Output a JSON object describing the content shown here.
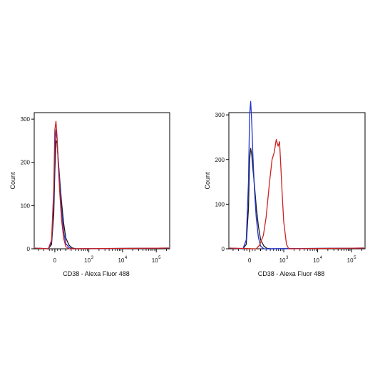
{
  "chart_data": [
    {
      "type": "line",
      "panel": "left",
      "xlabel": "CD38 - Alexa Fluor 488",
      "ylabel": "Count",
      "x_scale": "biexponential",
      "ylim": [
        0,
        315
      ],
      "y_ticks": [
        {
          "value": 0,
          "label": "0"
        },
        {
          "value": 100,
          "label": "100"
        },
        {
          "value": 200,
          "label": "200"
        },
        {
          "value": 300,
          "label": "300"
        }
      ],
      "x_ticks": [
        {
          "value": 0,
          "label": "0",
          "exp": ""
        },
        {
          "value": 1000,
          "label": "10",
          "exp": "3"
        },
        {
          "value": 10000,
          "label": "10",
          "exp": "4"
        },
        {
          "value": 100000,
          "label": "10",
          "exp": "5"
        }
      ],
      "series": [
        {
          "color": "#1a1a1a",
          "x": [
            -120,
            -60,
            -20,
            0,
            20,
            40,
            60,
            90,
            120,
            160,
            200,
            260,
            320,
            420
          ],
          "y": [
            0,
            10,
            80,
            180,
            250,
            245,
            210,
            160,
            110,
            60,
            25,
            8,
            2,
            0
          ]
        },
        {
          "color": "#2233cc",
          "x": [
            -120,
            -60,
            -20,
            0,
            20,
            40,
            60,
            90,
            120,
            160,
            200,
            260,
            320
          ],
          "y": [
            0,
            15,
            110,
            230,
            275,
            255,
            210,
            150,
            90,
            40,
            12,
            3,
            0
          ]
        },
        {
          "color": "#cc2222",
          "x": [
            -120,
            -60,
            -20,
            0,
            20,
            40,
            60,
            90,
            120,
            160,
            200,
            260
          ],
          "y": [
            0,
            20,
            140,
            275,
            295,
            260,
            200,
            130,
            70,
            25,
            5,
            0
          ]
        }
      ]
    },
    {
      "type": "line",
      "panel": "right",
      "xlabel": "CD38 - Alexa Fluor 488",
      "ylabel": "Count",
      "x_scale": "biexponential",
      "ylim": [
        0,
        305
      ],
      "y_ticks": [
        {
          "value": 0,
          "label": "0"
        },
        {
          "value": 100,
          "label": "100"
        },
        {
          "value": 200,
          "label": "200"
        },
        {
          "value": 300,
          "label": "300"
        }
      ],
      "x_ticks": [
        {
          "value": 0,
          "label": "0",
          "exp": ""
        },
        {
          "value": 1000,
          "label": "10",
          "exp": "3"
        },
        {
          "value": 10000,
          "label": "10",
          "exp": "4"
        },
        {
          "value": 100000,
          "label": "10",
          "exp": "5"
        }
      ],
      "series": [
        {
          "color": "#1a1a1a",
          "x": [
            -120,
            -60,
            -20,
            0,
            20,
            40,
            60,
            90,
            120,
            160,
            200,
            260,
            320,
            420
          ],
          "y": [
            0,
            10,
            90,
            200,
            225,
            210,
            180,
            140,
            95,
            50,
            20,
            6,
            1,
            0
          ]
        },
        {
          "color": "#2233cc",
          "x": [
            -120,
            -60,
            -20,
            0,
            20,
            40,
            60,
            90,
            120,
            160,
            200,
            260,
            320
          ],
          "y": [
            0,
            20,
            150,
            300,
            330,
            280,
            210,
            130,
            70,
            25,
            6,
            0,
            0
          ]
        },
        {
          "color": "#cc2222",
          "x": [
            120,
            180,
            250,
            300,
            380,
            450,
            520,
            600,
            680,
            750,
            800,
            900,
            1000,
            1200,
            1400
          ],
          "y": [
            0,
            8,
            30,
            70,
            150,
            200,
            215,
            245,
            230,
            240,
            200,
            120,
            60,
            10,
            0
          ]
        }
      ]
    }
  ]
}
